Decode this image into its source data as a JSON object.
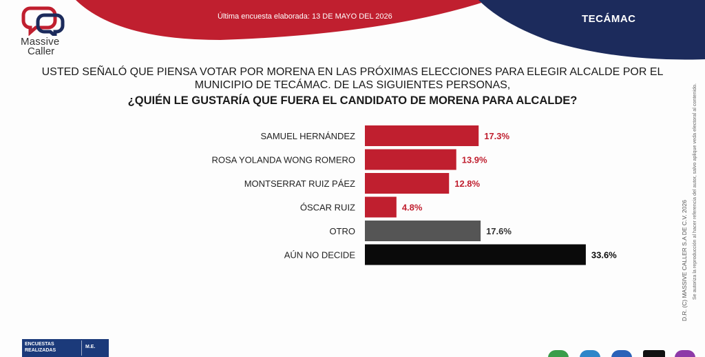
{
  "header": {
    "brand_line1": "Massive",
    "brand_line2": "Caller",
    "survey_date": "Última encuesta elaborada: 13 DE MAYO DEL 2026",
    "region": "TECÁMAC",
    "colors": {
      "red": "#c01f2f",
      "navy": "#1c2b5c"
    }
  },
  "question": {
    "line1": "USTED SEÑALÓ QUE PIENSA VOTAR POR MORENA EN LAS PRÓXIMAS ELECCIONES PARA ELEGIR ALCALDE POR EL",
    "line2": "MUNICIPIO DE TECÁMAC. DE LAS SIGUIENTES PERSONAS,",
    "line3": "¿QUIÉN LE GUSTARÍA QUE FUERA EL CANDIDATO DE MORENA PARA ALCALDE?"
  },
  "chart_data": {
    "type": "bar",
    "orientation": "horizontal",
    "categories": [
      "SAMUEL HERNÁNDEZ",
      "ROSA YOLANDA WONG ROMERO",
      "MONTSERRAT RUIZ PÁEZ",
      "ÓSCAR RUIZ",
      "OTRO",
      "AÚN NO DECIDE"
    ],
    "values": [
      17.3,
      13.9,
      12.8,
      4.8,
      17.6,
      33.6
    ],
    "value_labels": [
      "17.3%",
      "13.9%",
      "12.8%",
      "4.8%",
      "17.6%",
      "33.6%"
    ],
    "bar_colors": [
      "#c01f2f",
      "#c01f2f",
      "#c01f2f",
      "#c01f2f",
      "#555555",
      "#0a0a0a"
    ],
    "label_colors": [
      "#c01f2f",
      "#c01f2f",
      "#c01f2f",
      "#c01f2f",
      "#333333",
      "#0a0a0a"
    ],
    "xlim": [
      0,
      100
    ],
    "grid": false,
    "legend": "none"
  },
  "copyright": {
    "line1": "D.R. (C) MASSIVE CALLER S.A DE C.V. 2026",
    "line2": "Se autoriza la reproducción al hacer referencia del autor, salvo aplique veda electoral al contenido."
  },
  "footer": {
    "encuestas_line1": "ENCUESTAS",
    "encuestas_line2": "REALIZADAS",
    "me": "M.E."
  }
}
